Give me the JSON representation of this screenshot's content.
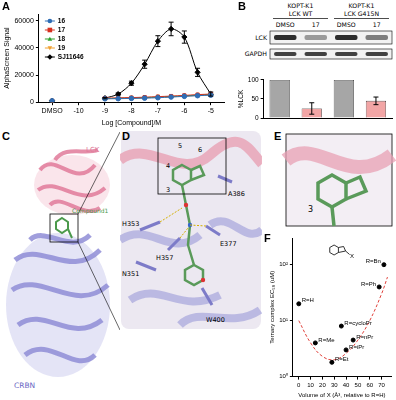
{
  "chart_data": [
    {
      "panel": "A",
      "type": "line",
      "x_label": "Log [Compound]/M",
      "y_label": "AlphaScreen Signal",
      "x": [
        -11,
        -10,
        -9,
        -8.5,
        -8,
        -7.5,
        -7,
        -6.5,
        -6,
        -5.5,
        -5
      ],
      "xlim": [
        -11.5,
        -4.5
      ],
      "xticks": [
        {
          "value": -11,
          "label": "DMSO"
        },
        -10,
        -9,
        -8,
        -7,
        -6,
        -5
      ],
      "ylim": [
        0,
        65000
      ],
      "yticks": [
        0,
        20000,
        40000,
        60000
      ],
      "grid": false,
      "legend": "top-left",
      "series": [
        {
          "name": "16",
          "color": "#2f6db5",
          "marker": "circle",
          "values": [
            1000,
            null,
            2500,
            2600,
            2800,
            3000,
            3300,
            3800,
            4300,
            4800,
            5200
          ]
        },
        {
          "name": "17",
          "color": "#d7301f",
          "marker": "square",
          "values": [
            1000,
            null,
            3000,
            3200,
            3400,
            3700,
            4100,
            4500,
            5000,
            5600,
            6000
          ]
        },
        {
          "name": "18",
          "color": "#2ca02c",
          "marker": "triangle",
          "values": [
            1000,
            null,
            2700,
            2900,
            3100,
            3400,
            3800,
            4200,
            4700,
            5200,
            5700
          ]
        },
        {
          "name": "19",
          "color": "#f0a030",
          "marker": "triangle_down",
          "values": [
            1000,
            null,
            2600,
            2800,
            3000,
            3300,
            3600,
            4000,
            4500,
            5000,
            5500
          ]
        },
        {
          "name": "SJ11646",
          "color": "#000000",
          "marker": "diamond",
          "values": [
            1000,
            null,
            3000,
            6000,
            14000,
            28000,
            45000,
            54000,
            48000,
            22000,
            6000
          ],
          "errors": [
            0,
            null,
            500,
            800,
            1500,
            3000,
            4000,
            5000,
            4500,
            3000,
            1500
          ]
        }
      ]
    },
    {
      "panel": "B",
      "type": "bar",
      "y_label": "%LCK",
      "categories": [
        "DMSO",
        "17",
        "DMSO",
        "17"
      ],
      "values": [
        100,
        25,
        100,
        45
      ],
      "errors": [
        0,
        15,
        0,
        10
      ],
      "colors": [
        "#a6a6a6",
        "#f2a5a5",
        "#a6a6a6",
        "#f2a5a5"
      ],
      "ylim": [
        0,
        100
      ],
      "yticks": [
        0,
        50,
        100
      ],
      "grid": false,
      "tick_labels": "y"
    },
    {
      "panel": "F",
      "type": "scatter",
      "x_label": "Volume of X (Å³, relative to R=H)",
      "y_label": "Ternary complex EC₅₀ (uM)",
      "x": [
        0,
        14,
        28,
        36,
        40,
        46,
        68,
        72
      ],
      "values": [
        20,
        4,
        1.8,
        8,
        3,
        4.5,
        40,
        100
      ],
      "point_labels": [
        "R=H",
        "R=Me",
        "R=Et",
        "R=cycloPr",
        "R=iPr",
        "R=nPr",
        "R=Ph",
        "R=Bn"
      ],
      "color": "#000000",
      "log": "y",
      "xlim": [
        -5,
        78
      ],
      "xticks": [
        0,
        10,
        20,
        30,
        40,
        50,
        60,
        70
      ],
      "ylim": [
        1,
        300
      ],
      "yticks": [
        {
          "value": 1,
          "label": "10⁰"
        },
        {
          "value": 10,
          "label": "10¹"
        },
        {
          "value": 100,
          "label": "10²"
        }
      ],
      "grid": false,
      "inset_label": "X",
      "fit": {
        "x": [
          0,
          10,
          20,
          30,
          40,
          50,
          60,
          70,
          75
        ],
        "values": [
          10,
          4,
          2.3,
          2,
          2.6,
          4.5,
          10,
          30,
          60
        ],
        "color": "#e0403a",
        "line_style": "dashed"
      }
    }
  ],
  "blot": {
    "groups": [
      [
        "KOPT-K1",
        "LCK WT"
      ],
      [
        "KOPT-K1",
        "LCK G415N"
      ]
    ],
    "rows": [
      "LCK",
      "GAPDH"
    ]
  },
  "structures": [
    {
      "panel": "C",
      "labels": [
        "LCK",
        "Compound1",
        "CRBN"
      ]
    },
    {
      "panel": "D",
      "residues": [
        "H353",
        "N351",
        "H357",
        "E377",
        "W400",
        "A386"
      ],
      "atoms": [
        "3",
        "4",
        "5",
        "6"
      ]
    },
    {
      "panel": "E",
      "atoms": [
        "3"
      ]
    }
  ]
}
